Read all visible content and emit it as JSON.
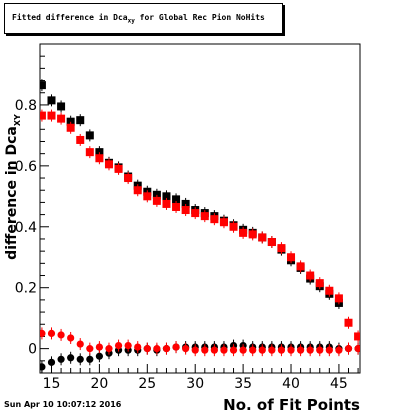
{
  "title": {
    "prefix": "Fitted difference in Dca",
    "subscript": "xy",
    "suffix": " for Global Rec Pion NoHits"
  },
  "footer": {
    "date": "Sun Apr 10 10:07:12 2016"
  },
  "colors": {
    "black_series": "#000000",
    "red_series": "#ff0000",
    "axis": "#000000"
  },
  "chart_data": {
    "type": "scatter",
    "title": "Fitted difference in Dca_xy for Global Rec Pion NoHits",
    "xlabel": "No. of Fit Points",
    "ylabel": "difference in Dca_XY",
    "ylabel_main": "difference in Dca",
    "ylabel_sub": "XY",
    "xlim": [
      13.8,
      47.2
    ],
    "ylim": [
      -0.08,
      1.0
    ],
    "x_ticks": [
      15,
      20,
      25,
      30,
      35,
      40,
      45
    ],
    "y_ticks": [
      0,
      0.2,
      0.4,
      0.6,
      0.8
    ],
    "y_tick_labels": [
      "0",
      "0.2",
      "0.4",
      "0.6",
      "0.8"
    ],
    "grid": false,
    "series": [
      {
        "color": "#000000",
        "marker": "square",
        "x": [
          14,
          15,
          16,
          17,
          18,
          19,
          20,
          21,
          22,
          23,
          24,
          25,
          26,
          27,
          28,
          29,
          30,
          31,
          32,
          33,
          34,
          35,
          36,
          37,
          38,
          39,
          40,
          41,
          42,
          43,
          44,
          45
        ],
        "y": [
          0.865,
          0.815,
          0.795,
          0.745,
          0.75,
          0.7,
          0.645,
          0.61,
          0.595,
          0.565,
          0.535,
          0.515,
          0.505,
          0.5,
          0.49,
          0.475,
          0.455,
          0.445,
          0.435,
          0.42,
          0.405,
          0.39,
          0.38,
          0.365,
          0.35,
          0.325,
          0.29,
          0.265,
          0.23,
          0.205,
          0.18,
          0.15
        ]
      },
      {
        "color": "#ff0000",
        "marker": "square",
        "x": [
          14,
          15,
          16,
          17,
          18,
          19,
          20,
          21,
          22,
          23,
          24,
          25,
          26,
          27,
          28,
          29,
          30,
          31,
          32,
          33,
          34,
          35,
          36,
          37,
          38,
          39,
          40,
          41,
          42,
          43,
          44,
          45,
          46,
          47
        ],
        "y": [
          0.765,
          0.765,
          0.755,
          0.725,
          0.685,
          0.645,
          0.625,
          0.605,
          0.59,
          0.56,
          0.52,
          0.5,
          0.485,
          0.475,
          0.465,
          0.455,
          0.445,
          0.435,
          0.425,
          0.415,
          0.4,
          0.38,
          0.375,
          0.365,
          0.35,
          0.33,
          0.3,
          0.27,
          0.24,
          0.215,
          0.19,
          0.165,
          0.085,
          0.04
        ]
      },
      {
        "color": "#000000",
        "marker": "circle",
        "x": [
          14,
          15,
          16,
          17,
          18,
          19,
          20,
          21,
          22,
          23,
          24,
          25,
          26,
          27,
          28,
          29,
          30,
          31,
          32,
          33,
          34,
          35,
          36,
          37,
          38,
          39,
          40,
          41,
          42,
          43,
          44,
          45,
          46,
          47
        ],
        "y": [
          -0.06,
          -0.045,
          -0.035,
          -0.03,
          -0.035,
          -0.035,
          -0.025,
          -0.015,
          -0.005,
          -0.005,
          -0.005,
          0.0,
          -0.005,
          0.0,
          0.005,
          0.005,
          0.005,
          0.005,
          0.005,
          0.005,
          0.01,
          0.01,
          0.005,
          0.005,
          0.005,
          0.005,
          0.005,
          0.005,
          0.005,
          0.005,
          0.005,
          0.0,
          0.0,
          0.0
        ]
      },
      {
        "color": "#ff0000",
        "marker": "circle",
        "x": [
          14,
          15,
          16,
          17,
          18,
          19,
          20,
          21,
          22,
          23,
          24,
          25,
          26,
          27,
          28,
          29,
          30,
          31,
          32,
          33,
          34,
          35,
          36,
          37,
          38,
          39,
          40,
          41,
          42,
          43,
          44,
          45,
          46,
          47
        ],
        "y": [
          0.05,
          0.05,
          0.045,
          0.035,
          0.015,
          0.0,
          0.005,
          0.0,
          0.01,
          0.01,
          0.005,
          0.0,
          0.0,
          0.0,
          0.005,
          0.0,
          -0.005,
          -0.005,
          -0.005,
          -0.005,
          -0.005,
          -0.005,
          -0.005,
          -0.005,
          -0.005,
          -0.005,
          -0.005,
          -0.005,
          -0.005,
          -0.005,
          -0.005,
          -0.005,
          0.0,
          0.0
        ]
      }
    ]
  }
}
